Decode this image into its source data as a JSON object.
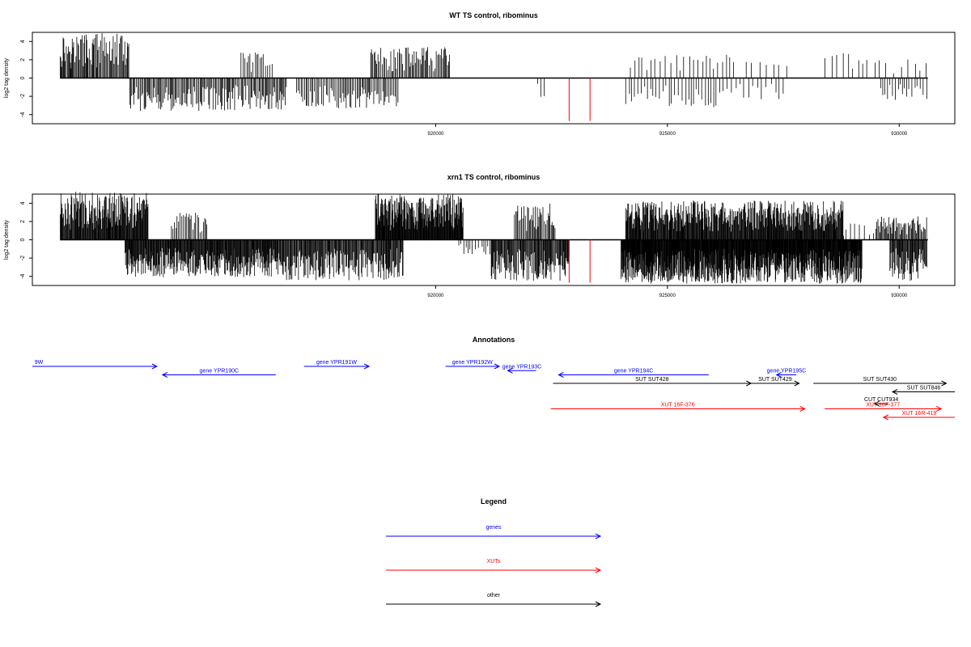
{
  "colors": {
    "genes": "#0000ff",
    "XUTs": "#ff0000",
    "other": "#000000",
    "highlight": "#ff0000"
  },
  "chart_data": [
    {
      "type": "bar",
      "title": "WT TS control, ribominus",
      "xlabel": "",
      "ylabel": "log2 tag density",
      "xlim": [
        911300,
        931200
      ],
      "ylim": [
        -5,
        5
      ],
      "x_ticks": [
        920000,
        925000,
        930000
      ],
      "x_tick_labels": [
        "920000",
        "925000",
        "930000"
      ],
      "y_ticks": [
        4,
        2,
        0,
        -2,
        -4
      ],
      "y_tick_labels": [
        "4",
        "2",
        "0",
        "-2",
        "-4"
      ],
      "baseline_range": [
        911900,
        930620
      ],
      "highlight_positions": [
        922880,
        923330
      ],
      "highlight_values": [
        -4.7,
        -4.7
      ],
      "plus_clusters": [
        {
          "range": [
            911900,
            913400
          ],
          "max": 4.9,
          "step": 20
        },
        {
          "range": [
            915800,
            916500
          ],
          "max": 2.8,
          "step": 40
        },
        {
          "range": [
            918600,
            920300
          ],
          "max": 3.4,
          "step": 25
        },
        {
          "range": [
            924200,
            925100
          ],
          "max": 2.5,
          "step": 90
        },
        {
          "range": [
            925200,
            926500
          ],
          "max": 2.6,
          "step": 100
        },
        {
          "range": [
            926700,
            927600
          ],
          "max": 1.8,
          "step": 150
        },
        {
          "range": [
            928400,
            929300
          ],
          "max": 2.8,
          "step": 120
        },
        {
          "range": [
            929300,
            930620
          ],
          "max": 2.1,
          "step": 130
        }
      ],
      "minus_clusters": [
        {
          "range": [
            913400,
            916800
          ],
          "max": 3.6,
          "step": 25
        },
        {
          "range": [
            917000,
            919200
          ],
          "max": 3.3,
          "step": 30
        },
        {
          "range": [
            922200,
            922400
          ],
          "max": 2.3,
          "step": 100
        },
        {
          "range": [
            924100,
            926200
          ],
          "max": 3.2,
          "step": 60
        },
        {
          "range": [
            926200,
            927500
          ],
          "max": 2.4,
          "step": 90
        },
        {
          "range": [
            929600,
            930600
          ],
          "max": 2.4,
          "step": 60
        }
      ]
    },
    {
      "type": "bar",
      "title": "xrn1 TS control, ribominus",
      "xlabel": "",
      "ylabel": "log2 tag density",
      "xlim": [
        911300,
        931200
      ],
      "ylim": [
        -5,
        5
      ],
      "x_ticks": [
        920000,
        925000,
        930000
      ],
      "x_tick_labels": [
        "920000",
        "925000",
        "930000"
      ],
      "y_ticks": [
        4,
        2,
        0,
        -2,
        -4
      ],
      "y_tick_labels": [
        "4",
        "2",
        "0",
        "-2",
        "-4"
      ],
      "baseline_range": [
        911900,
        930620
      ],
      "highlight_positions": [
        922880,
        923330
      ],
      "highlight_values": [
        -4.7,
        -4.7
      ],
      "plus_clusters": [
        {
          "range": [
            911900,
            913800
          ],
          "max": 5.3,
          "step": 12
        },
        {
          "range": [
            914300,
            915100
          ],
          "max": 3.0,
          "step": 30
        },
        {
          "range": [
            918700,
            920600
          ],
          "max": 5.0,
          "step": 10
        },
        {
          "range": [
            921700,
            922600
          ],
          "max": 4.0,
          "step": 25
        },
        {
          "range": [
            924100,
            928800
          ],
          "max": 4.3,
          "step": 12
        },
        {
          "range": [
            928800,
            929500
          ],
          "max": 1.8,
          "step": 80
        },
        {
          "range": [
            929500,
            930600
          ],
          "max": 2.6,
          "step": 20
        }
      ],
      "minus_clusters": [
        {
          "range": [
            913300,
            916600
          ],
          "max": 4.1,
          "step": 12
        },
        {
          "range": [
            916600,
            919300
          ],
          "max": 4.5,
          "step": 15
        },
        {
          "range": [
            920500,
            921200
          ],
          "max": 1.6,
          "step": 60
        },
        {
          "range": [
            921200,
            922900
          ],
          "max": 4.5,
          "step": 15
        },
        {
          "range": [
            924000,
            929200
          ],
          "max": 4.8,
          "step": 8
        },
        {
          "range": [
            929800,
            930600
          ],
          "max": 4.5,
          "step": 15
        }
      ]
    }
  ],
  "annotations": {
    "title": "Annotations",
    "features": [
      {
        "label": "9W",
        "start": 911300,
        "end": 913500,
        "strand": "+",
        "kind": "genes",
        "row": 0
      },
      {
        "label": "gene YPR190C",
        "start": 913600,
        "end": 915600,
        "strand": "-",
        "kind": "genes",
        "row": 1
      },
      {
        "label": "gene YPR191W",
        "start": 916100,
        "end": 917250,
        "strand": "+",
        "kind": "genes",
        "row": 0
      },
      {
        "label": "gene YPR192W",
        "start": 918600,
        "end": 919550,
        "strand": "+",
        "kind": "genes",
        "row": 0
      },
      {
        "label": "gene YPR193C",
        "start": 919700,
        "end": 920200,
        "strand": "-",
        "kind": "genes",
        "row": 0.5
      },
      {
        "label": "gene YPR194C",
        "start": 920600,
        "end": 923250,
        "strand": "-",
        "kind": "genes",
        "row": 1
      },
      {
        "label": "gene YPR195C",
        "start": 924450,
        "end": 924800,
        "strand": "-",
        "kind": "genes",
        "row": 1
      },
      {
        "label": "SUT SUT428",
        "start": 920500,
        "end": 924000,
        "strand": "+",
        "kind": "other",
        "row": 2
      },
      {
        "label": "SUT SUT429",
        "start": 924000,
        "end": 924850,
        "strand": "+",
        "kind": "other",
        "row": 2
      },
      {
        "label": "SUT SUT430",
        "start": 925100,
        "end": 927450,
        "strand": "+",
        "kind": "other",
        "row": 2
      },
      {
        "label": "SUT SUT846",
        "start": 926500,
        "end": 927600,
        "strand": "-",
        "kind": "other",
        "row": 3
      },
      {
        "label": "CUT CUT934",
        "start": 926180,
        "end": 926420,
        "strand": "-",
        "kind": "other",
        "row": 4.4
      },
      {
        "label": "XUT 16F-376",
        "start": 920460,
        "end": 924950,
        "strand": "+",
        "kind": "XUTs",
        "row": 5
      },
      {
        "label": "XUT 16F-377",
        "start": 925300,
        "end": 927360,
        "strand": "+",
        "kind": "XUTs",
        "row": 5
      },
      {
        "label": "XUT 16R-419",
        "start": 926340,
        "end": 927600,
        "strand": "-",
        "kind": "XUTs",
        "row": 6
      }
    ]
  },
  "legend": {
    "title": "Legend",
    "items": [
      {
        "label": "genes",
        "kind": "genes"
      },
      {
        "label": "XUTs",
        "kind": "XUTs"
      },
      {
        "label": "other",
        "kind": "other"
      }
    ]
  }
}
